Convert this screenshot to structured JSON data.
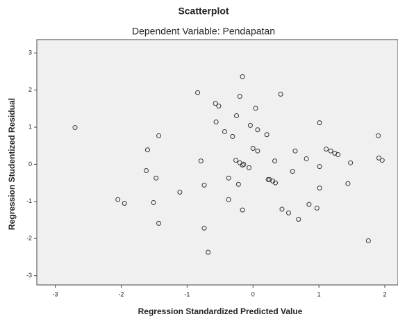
{
  "chart_data": {
    "type": "scatter",
    "title": "Scatterplot",
    "subtitle": "Dependent Variable: Pendapatan",
    "x_label": "Regression Standardized Predicted Value",
    "y_label": "Regression Studentized Residual",
    "x": [
      -2.7,
      -2.05,
      -1.95,
      -1.62,
      -1.6,
      -1.51,
      -1.47,
      -1.43,
      -1.43,
      -1.11,
      -0.84,
      -0.79,
      -0.74,
      -0.74,
      -0.68,
      -0.57,
      -0.56,
      -0.52,
      -0.43,
      -0.37,
      -0.37,
      -0.31,
      -0.26,
      -0.25,
      -0.22,
      -0.2,
      -0.2,
      -0.16,
      -0.16,
      -0.16,
      -0.14,
      -0.06,
      -0.04,
      0.0,
      0.04,
      0.07,
      0.07,
      0.21,
      0.23,
      0.25,
      0.3,
      0.33,
      0.34,
      0.42,
      0.44,
      0.54,
      0.6,
      0.64,
      0.69,
      0.81,
      0.85,
      0.97,
      1.01,
      1.01,
      1.01,
      1.11,
      1.18,
      1.24,
      1.29,
      1.44,
      1.48,
      1.75,
      1.9,
      1.91,
      1.96
    ],
    "values": [
      0.99,
      -0.95,
      -1.05,
      -0.17,
      0.39,
      -1.03,
      -0.37,
      0.77,
      -1.59,
      -0.75,
      1.93,
      0.09,
      -0.56,
      -1.72,
      -2.37,
      1.64,
      1.14,
      1.57,
      0.88,
      -0.37,
      -0.95,
      0.75,
      0.11,
      1.31,
      -0.54,
      1.83,
      0.04,
      2.36,
      -0.02,
      -1.23,
      0.0,
      -0.09,
      1.05,
      0.43,
      1.51,
      0.93,
      0.36,
      0.8,
      -0.41,
      -0.41,
      -0.45,
      0.09,
      -0.5,
      1.89,
      -1.21,
      -1.31,
      -0.19,
      0.36,
      -1.48,
      0.15,
      -1.08,
      -1.18,
      1.12,
      -0.06,
      -0.64,
      0.41,
      0.36,
      0.3,
      0.26,
      -0.52,
      0.04,
      -2.06,
      0.77,
      0.17,
      0.11
    ],
    "color": "#333333",
    "xlim": [
      -3.28,
      2.2
    ],
    "ylim": [
      -3.25,
      3.36
    ],
    "xticks": [
      -3,
      -2,
      -1,
      0,
      1,
      2
    ],
    "yticks": [
      -3,
      -2,
      -1,
      0,
      1,
      2,
      3
    ]
  }
}
